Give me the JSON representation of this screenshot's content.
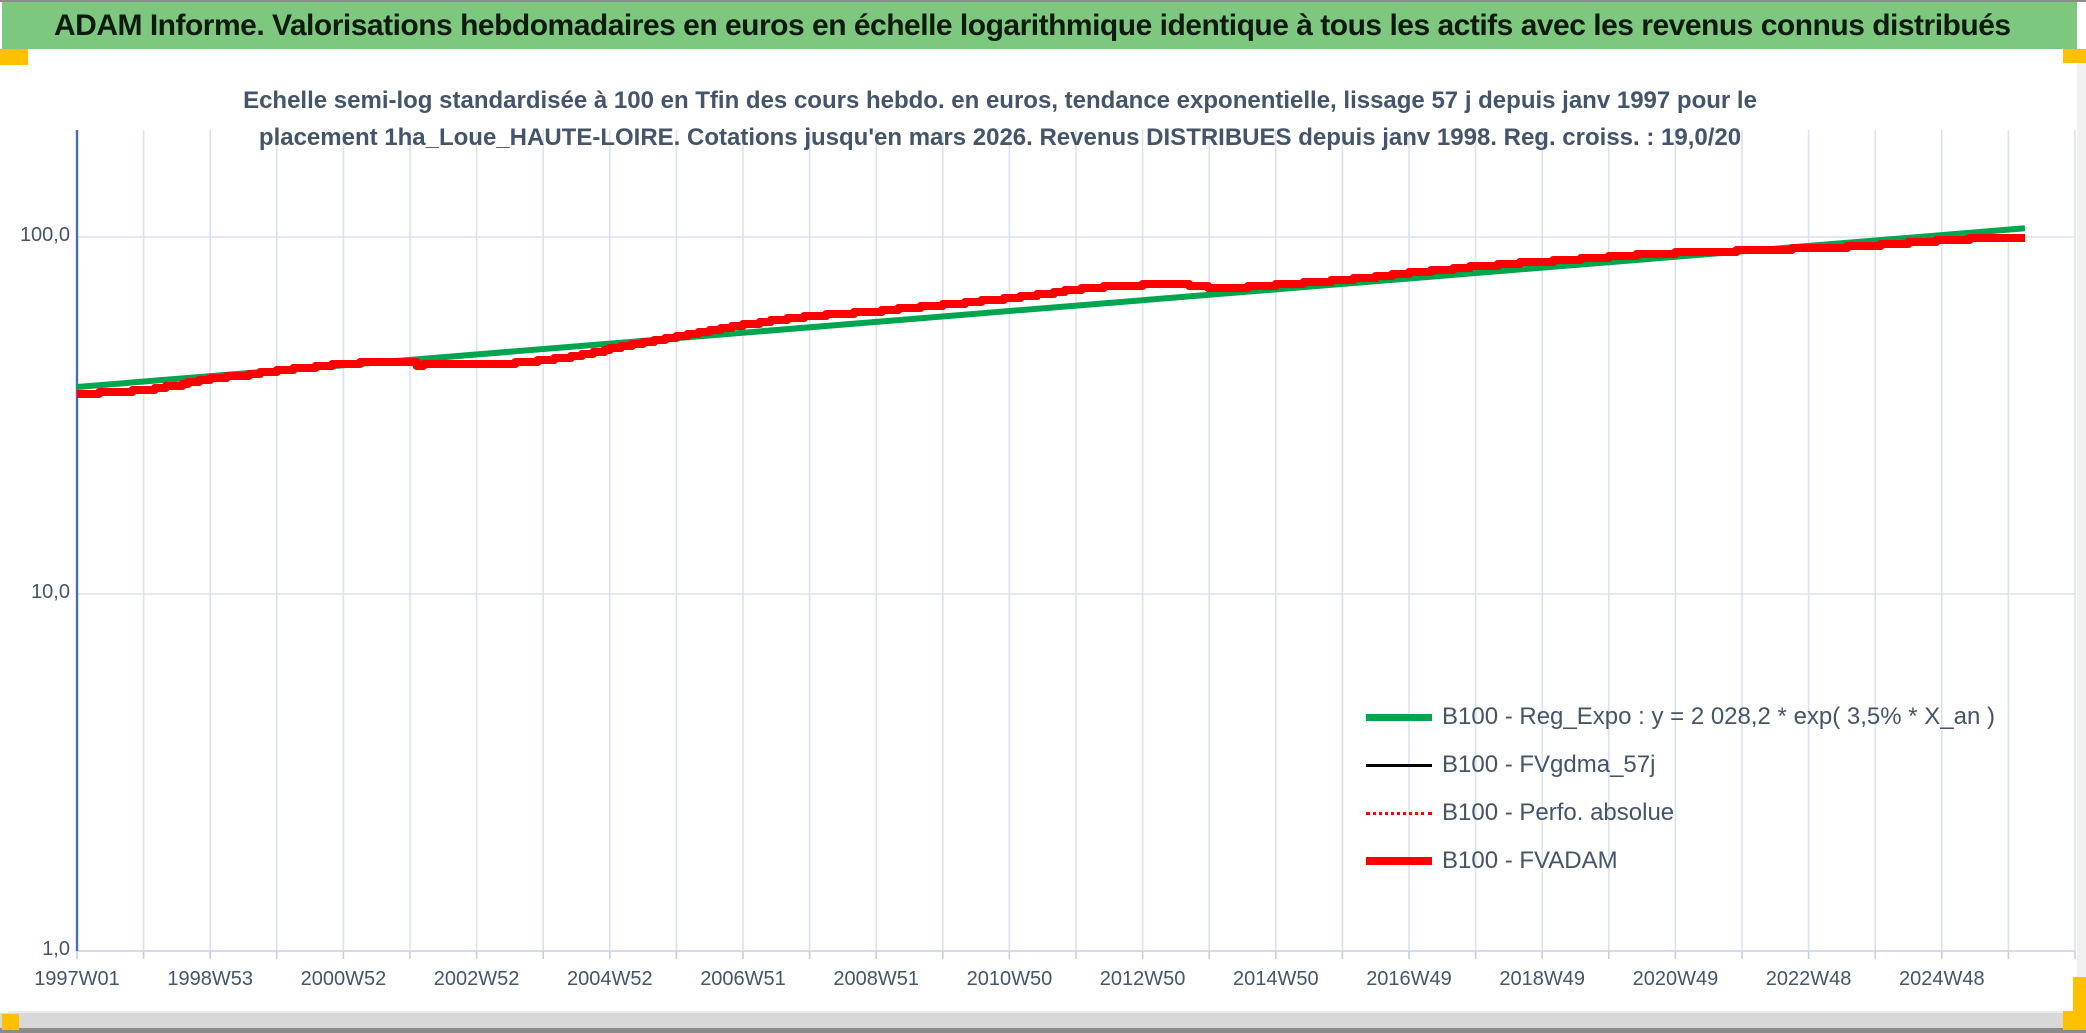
{
  "window": {
    "banner_title": "ADAM Informe. Valorisations hebdomadaires en euros en échelle logarithmique identique à tous les actifs avec les revenus connus distribués",
    "banner_color": "#7DC87E",
    "accent_color": "#FFC000"
  },
  "chart": {
    "title_line1": "Echelle semi-log standardisée à 100 en Tfin des cours hebdo. en euros, tendance exponentielle, lissage 57 j depuis janv 1997 pour le",
    "title_line2": "placement 1ha_Loue_HAUTE-LOIRE. Cotations jusqu'en mars 2026. Revenus DISTRIBUES depuis janv 1998. Reg. croiss. : 19,0/20"
  },
  "legend": {
    "position": "inside-bottom-right",
    "items": [
      {
        "label": "B100 - Reg_Expo : y = 2 028,2 * exp( 3,5% *  X_an )",
        "color": "#00A550",
        "style": "solid-thick"
      },
      {
        "label": "B100 - FVgdma_57j",
        "color": "#000000",
        "style": "solid-thin"
      },
      {
        "label": "B100 - Perfo. absolue",
        "color": "#FF0000",
        "style": "dotted"
      },
      {
        "label": "B100 - FVADAM",
        "color": "#FF0000",
        "style": "solid-thick"
      }
    ]
  },
  "chart_data": {
    "type": "line",
    "y_axis": {
      "scale": "log10",
      "tick_labels": [
        "100,0",
        "10,0",
        "1,0"
      ],
      "tick_values": [
        100,
        10,
        1
      ],
      "range": [
        1,
        200
      ],
      "gridlines": true
    },
    "x_axis": {
      "unit": "ISO-week categories, weekly data",
      "labels": [
        "1997W01",
        "1998W53",
        "2000W52",
        "2002W52",
        "2004W52",
        "2006W51",
        "2008W51",
        "2010W50",
        "2012W50",
        "2014W50",
        "2016W49",
        "2018W49",
        "2020W49",
        "2022W48",
        "2024W48"
      ],
      "label_years": [
        1997,
        1999,
        2001,
        2003,
        2005,
        2007,
        2009,
        2011,
        2013,
        2015,
        2017,
        2019,
        2021,
        2023,
        2025
      ],
      "range_years": [
        1997,
        2027
      ],
      "gridline_every_years": 1
    },
    "series": [
      {
        "name": "B100 - Reg_Expo : y = 2 028,2 * exp( 3,5% *  X_an )",
        "color": "#00A550",
        "width": 6,
        "style": "solid",
        "stepped": false,
        "x": [
          1997.0,
          2026.25
        ],
        "values": [
          38.0,
          105.8
        ]
      },
      {
        "name": "B100 - FVgdma_57j",
        "color": "#000000",
        "width": 3,
        "style": "solid",
        "stepped": true,
        "coincides_with": "B100 - FVADAM"
      },
      {
        "name": "B100 - Perfo. absolue",
        "color": "#FF0000",
        "width": 2.5,
        "style": "dotted",
        "stepped": true,
        "coincides_with": "B100 - FVADAM"
      },
      {
        "name": "B100 - FVADAM",
        "color": "#FF0000",
        "width": 8,
        "style": "solid",
        "stepped": true,
        "x": [
          1997.0,
          1997.5,
          1998.0,
          1998.5,
          1999.0,
          1999.5,
          2000.0,
          2000.5,
          2001.0,
          2001.5,
          2002.0,
          2002.1,
          2002.3,
          2002.6,
          2003.0,
          2003.5,
          2004.0,
          2004.5,
          2005.0,
          2005.5,
          2006.0,
          2006.5,
          2007.0,
          2007.5,
          2008.0,
          2008.5,
          2009.0,
          2009.5,
          2010.0,
          2010.5,
          2011.0,
          2011.5,
          2012.0,
          2012.5,
          2013.0,
          2013.5,
          2013.9,
          2014.15,
          2014.5,
          2015.0,
          2015.5,
          2016.0,
          2016.5,
          2017.0,
          2017.5,
          2018.0,
          2018.5,
          2019.0,
          2019.5,
          2020.0,
          2020.5,
          2021.0,
          2021.5,
          2022.0,
          2022.5,
          2023.0,
          2023.5,
          2024.0,
          2024.5,
          2025.0,
          2025.5,
          2026.0,
          2026.25
        ],
        "values": [
          36.4,
          36.7,
          37.3,
          38.4,
          40.3,
          41.0,
          42.2,
          43.2,
          44.2,
          44.7,
          44.4,
          43.6,
          44.2,
          44.1,
          44.3,
          44.2,
          45.3,
          46.4,
          48.6,
          50.6,
          52.5,
          54.6,
          56.8,
          58.6,
          60.0,
          61.1,
          62.0,
          63.3,
          64.6,
          66.0,
          67.4,
          69.2,
          71.3,
          72.9,
          73.4,
          73.7,
          72.6,
          71.8,
          72.4,
          73.5,
          74.6,
          75.9,
          77.4,
          79.4,
          81.0,
          82.7,
          84.2,
          85.4,
          86.6,
          88.0,
          89.3,
          90.2,
          90.8,
          91.5,
          92.3,
          93.0,
          93.7,
          94.8,
          96.3,
          97.8,
          99.0,
          99.8,
          100.0
        ]
      }
    ]
  }
}
